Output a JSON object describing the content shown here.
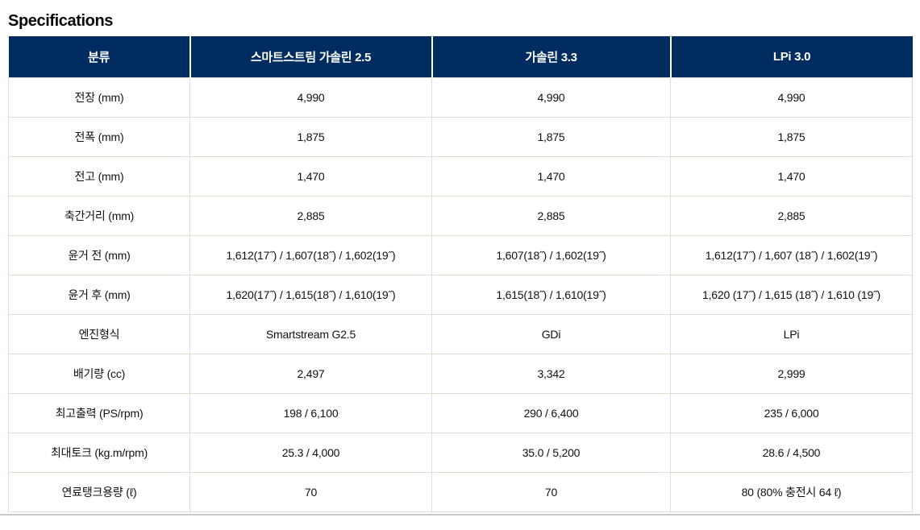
{
  "page_title": "Specifications",
  "colors": {
    "header_bg": "#002c5f",
    "header_text": "#ffffff",
    "body_text": "#111111",
    "border": "#e4dcd3",
    "bottom_rule": "#c9c9c9",
    "title": "#0a0a0a"
  },
  "table": {
    "columns": [
      "분류",
      "스마트스트림 가솔린 2.5",
      "가솔린 3.3",
      "LPi 3.0"
    ],
    "rows": [
      {
        "label": "전장 (mm)",
        "values": [
          "4,990",
          "4,990",
          "4,990"
        ]
      },
      {
        "label": "전폭 (mm)",
        "values": [
          "1,875",
          "1,875",
          "1,875"
        ]
      },
      {
        "label": "전고 (mm)",
        "values": [
          "1,470",
          "1,470",
          "1,470"
        ]
      },
      {
        "label": "축간거리 (mm)",
        "values": [
          "2,885",
          "2,885",
          "2,885"
        ]
      },
      {
        "label": "윤거 전 (mm)",
        "values": [
          "1,612(17˝) / 1,607(18˝) / 1,602(19˝)",
          "1,607(18˝) / 1,602(19˝)",
          "1,612(17˝) / 1,607 (18˝) / 1,602(19˝)"
        ]
      },
      {
        "label": "윤거 후 (mm)",
        "values": [
          "1,620(17˝) / 1,615(18˝) / 1,610(19˝)",
          "1,615(18˝) / 1,610(19˝)",
          "1,620 (17˝) / 1,615 (18˝) / 1,610 (19˝)"
        ]
      },
      {
        "label": "엔진형식",
        "values": [
          "Smartstream G2.5",
          "GDi",
          "LPi"
        ]
      },
      {
        "label": "배기량 (cc)",
        "values": [
          "2,497",
          "3,342",
          "2,999"
        ]
      },
      {
        "label": "최고출력 (PS/rpm)",
        "values": [
          "198 / 6,100",
          "290 / 6,400",
          "235 / 6,000"
        ]
      },
      {
        "label": "최대토크 (kg.m/rpm)",
        "values": [
          "25.3 / 4,000",
          "35.0 / 5,200",
          "28.6 / 4,500"
        ]
      },
      {
        "label": "연료탱크용량 (ℓ)",
        "values": [
          "70",
          "70",
          "80 (80% 충전시 64 ℓ)"
        ]
      }
    ]
  }
}
